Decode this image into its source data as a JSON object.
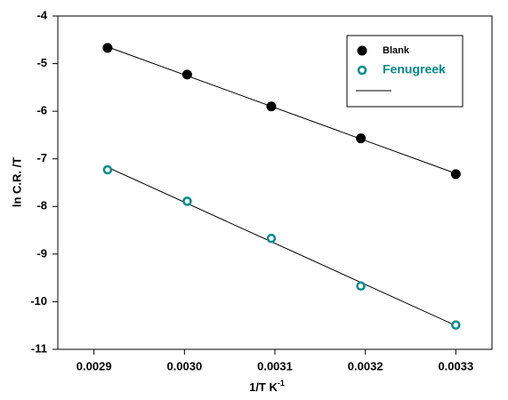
{
  "chart_data": {
    "type": "scatter",
    "x_label": "1/T K",
    "x_label_sup": "-1",
    "y_label": "ln C.R. /T",
    "x": [
      0.002915,
      0.003003,
      0.003096,
      0.003195,
      0.0033
    ],
    "series": [
      {
        "name": "Blank",
        "color": "#000000",
        "filled": true,
        "values": [
          -4.67,
          -5.23,
          -5.9,
          -6.57,
          -7.32
        ]
      },
      {
        "name": "Fenugreek",
        "color": "#008b8b",
        "filled": false,
        "values": [
          -7.23,
          -7.89,
          -8.67,
          -9.67,
          -10.49
        ]
      }
    ],
    "fit_line": true,
    "xlim": [
      0.00286,
      0.00334
    ],
    "xticks": [
      {
        "value": 0.0029,
        "label": "0.0029"
      },
      {
        "value": 0.003,
        "label": "0.0030"
      },
      {
        "value": 0.0031,
        "label": "0.0031"
      },
      {
        "value": 0.0032,
        "label": "0.0032"
      },
      {
        "value": 0.0033,
        "label": "0.0033"
      }
    ],
    "ylim": [
      -11,
      -4
    ],
    "yticks": [
      -4,
      -5,
      -6,
      -7,
      -8,
      -9,
      -10,
      -11
    ],
    "legend": "upper right"
  }
}
